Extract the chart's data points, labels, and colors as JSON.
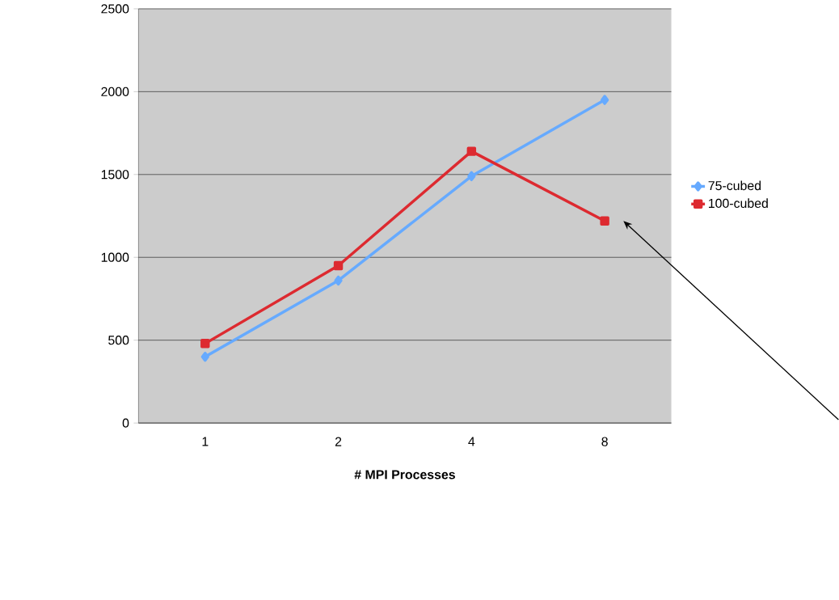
{
  "chart_data": {
    "type": "line",
    "xlabel": "# MPI Processes",
    "categories": [
      "1",
      "2",
      "4",
      "8"
    ],
    "series": [
      {
        "name": "75-cubed",
        "color": "#66aaff",
        "marker": "diamond",
        "values": [
          400,
          860,
          1490,
          1950
        ]
      },
      {
        "name": "100-cubed",
        "color": "#dd2a30",
        "marker": "square",
        "values": [
          480,
          950,
          1640,
          1220
        ]
      }
    ],
    "ylim": [
      0,
      2500
    ],
    "yticks": [
      0,
      500,
      1000,
      1500,
      2000,
      2500
    ],
    "grid": "y",
    "legend": "right",
    "line_style": "solid"
  }
}
